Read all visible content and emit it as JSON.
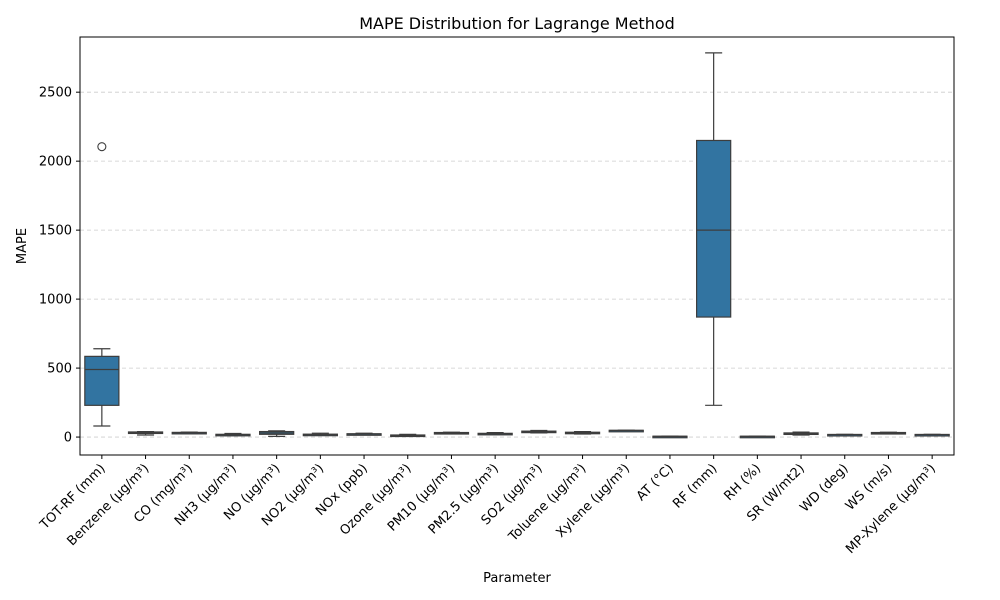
{
  "chart_data": {
    "type": "box",
    "title": "MAPE Distribution for Lagrange Method",
    "xlabel": "Parameter",
    "ylabel": "MAPE",
    "ylim": [
      -130,
      2900
    ],
    "yticks": [
      0,
      500,
      1000,
      1500,
      2000,
      2500
    ],
    "grid": "y-dashed",
    "box_color": "#3274a1",
    "categories": [
      "TOT-RF (mm)",
      "Benzene (µg/m³)",
      "CO (mg/m³)",
      "NH3 (µg/m³)",
      "NO (µg/m³)",
      "NO2 (µg/m³)",
      "NOx (ppb)",
      "Ozone (µg/m³)",
      "PM10 (µg/m³)",
      "PM2.5 (µg/m³)",
      "SO2 (µg/m³)",
      "Toluene (µg/m³)",
      "Xylene (µg/m³)",
      "AT (°C)",
      "RF (mm)",
      "RH (%)",
      "SR (W/mt2)",
      "WD (deg)",
      "WS (m/s)",
      "MP-Xylene (µg/m³)"
    ],
    "boxes": [
      {
        "whislo": 80,
        "q1": 230,
        "med": 490,
        "q3": 585,
        "whishi": 640,
        "fliers": [
          2105
        ]
      },
      {
        "whislo": 15,
        "q1": 28,
        "med": 32,
        "q3": 37,
        "whishi": 40,
        "fliers": []
      },
      {
        "whislo": 25,
        "q1": 28,
        "med": 31,
        "q3": 34,
        "whishi": 36,
        "fliers": []
      },
      {
        "whislo": 10,
        "q1": 14,
        "med": 17,
        "q3": 20,
        "whishi": 26,
        "fliers": []
      },
      {
        "whislo": 5,
        "q1": 20,
        "med": 30,
        "q3": 40,
        "whishi": 45,
        "fliers": []
      },
      {
        "whislo": 12,
        "q1": 16,
        "med": 18,
        "q3": 21,
        "whishi": 28,
        "fliers": []
      },
      {
        "whislo": 18,
        "q1": 20,
        "med": 22,
        "q3": 24,
        "whishi": 28,
        "fliers": []
      },
      {
        "whislo": 5,
        "q1": 8,
        "med": 12,
        "q3": 15,
        "whishi": 20,
        "fliers": []
      },
      {
        "whislo": 25,
        "q1": 27,
        "med": 30,
        "q3": 33,
        "whishi": 35,
        "fliers": []
      },
      {
        "whislo": 18,
        "q1": 21,
        "med": 24,
        "q3": 27,
        "whishi": 32,
        "fliers": []
      },
      {
        "whislo": 30,
        "q1": 34,
        "med": 38,
        "q3": 43,
        "whishi": 48,
        "fliers": []
      },
      {
        "whislo": 22,
        "q1": 26,
        "med": 30,
        "q3": 35,
        "whishi": 40,
        "fliers": []
      },
      {
        "whislo": 46,
        "q1": 47,
        "med": 48,
        "q3": 49,
        "whishi": 50,
        "fliers": []
      },
      {
        "whislo": 3,
        "q1": 4,
        "med": 5,
        "q3": 6,
        "whishi": 7,
        "fliers": []
      },
      {
        "whislo": 230,
        "q1": 870,
        "med": 1500,
        "q3": 2150,
        "whishi": 2785,
        "fliers": []
      },
      {
        "whislo": 3,
        "q1": 4,
        "med": 5,
        "q3": 6,
        "whishi": 7,
        "fliers": []
      },
      {
        "whislo": 15,
        "q1": 20,
        "med": 25,
        "q3": 30,
        "whishi": 36,
        "fliers": []
      },
      {
        "whislo": 16,
        "q1": 17,
        "med": 18,
        "q3": 19,
        "whishi": 20,
        "fliers": []
      },
      {
        "whislo": 25,
        "q1": 27,
        "med": 30,
        "q3": 33,
        "whishi": 35,
        "fliers": []
      },
      {
        "whislo": 16,
        "q1": 17,
        "med": 18,
        "q3": 19,
        "whishi": 20,
        "fliers": []
      }
    ]
  }
}
